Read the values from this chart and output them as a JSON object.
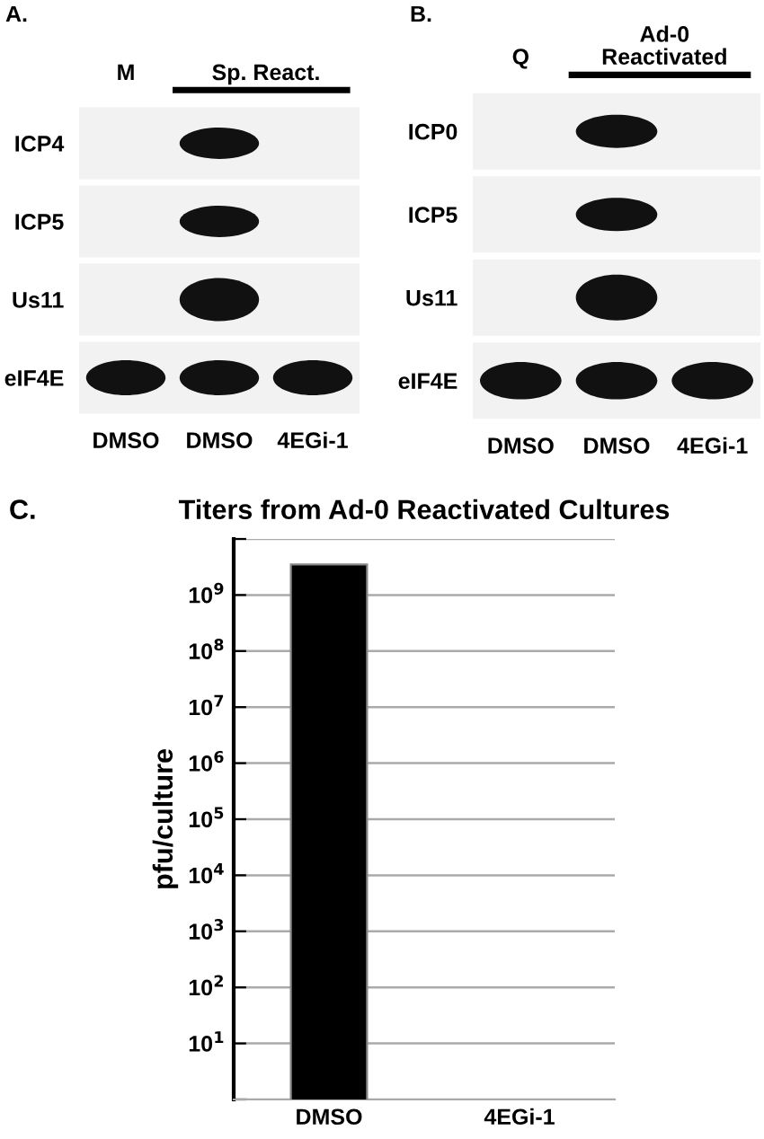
{
  "chart_data": [
    {
      "type": "other",
      "title": "A.",
      "annotations": [
        "M",
        "Sp. React."
      ],
      "categories": [
        "DMSO",
        "DMSO",
        "4EGi-1"
      ],
      "y_categories": [
        "ICP4",
        "ICP5",
        "Us11",
        "eIF4E"
      ]
    },
    {
      "type": "other",
      "title": "B.",
      "annotations": [
        "Q",
        "Ad-0\nReactivated"
      ],
      "categories": [
        "DMSO",
        "DMSO",
        "4EGi-1"
      ],
      "y_categories": [
        "ICP0",
        "ICP5",
        "Us11",
        "eIF4E"
      ]
    },
    {
      "type": "bar",
      "title": "Titers from Ad-0 Reactivated Cultures",
      "annotations": [
        "C."
      ],
      "ylabel": "pfu/culture",
      "categories": [
        "DMSO",
        "4EGi-1"
      ],
      "values": [
        3500000000,
        null
      ],
      "color": "#000000",
      "log": true,
      "ylim": [
        1,
        10000000000
      ],
      "yticks": [
        {
          "value": 1,
          "label": null
        },
        {
          "value": 10,
          "label": "10$^{1}$"
        },
        {
          "value": 100,
          "label": "10$^{2}$"
        },
        {
          "value": 1000,
          "label": "10$^{3}$"
        },
        {
          "value": 10000,
          "label": "10$^{4}$"
        },
        {
          "value": 100000,
          "label": "10$^{5}$"
        },
        {
          "value": 1000000,
          "label": "10$^{6}$"
        },
        {
          "value": 10000000,
          "label": "10$^{7}$"
        },
        {
          "value": 100000000,
          "label": "10$^{8}$"
        },
        {
          "value": 1000000000,
          "label": "10$^{9}$"
        },
        {
          "value": 10000000000,
          "label": null
        }
      ],
      "grid": "y"
    }
  ]
}
